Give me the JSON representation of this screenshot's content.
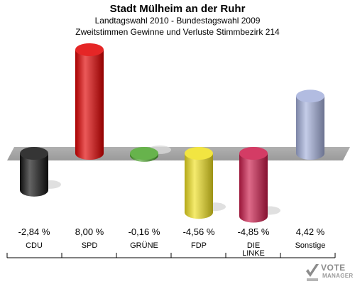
{
  "header": {
    "title": "Stadt Mülheim an der Ruhr",
    "subtitle1": "Landtagswahl 2010 - Bundestagswahl 2009",
    "subtitle2": "Zweitstimmen Gewinne und Verluste Stimmbezirk 214"
  },
  "chart_data": {
    "type": "bar",
    "title": "Stadt Mülheim an der Ruhr",
    "categories": [
      "CDU",
      "SPD",
      "GRÜNE",
      "FDP",
      "DIE LINKE",
      "Sonstige"
    ],
    "values": [
      -2.84,
      8.0,
      -0.16,
      -4.56,
      -4.85,
      4.42
    ],
    "value_labels": [
      "-2,84 %",
      "8,00 %",
      "-0,16 %",
      "-4,56 %",
      "-4,85 %",
      "4,42 %"
    ],
    "colors": [
      "#111111",
      "#e00000",
      "#4ca52c",
      "#f0e020",
      "#cc1a4a",
      "#a4b0dc"
    ],
    "xlabel": "",
    "ylabel": "",
    "grid": false,
    "legend": "none"
  },
  "logo": {
    "line1": "VOTE",
    "line2": "MANAGER"
  }
}
